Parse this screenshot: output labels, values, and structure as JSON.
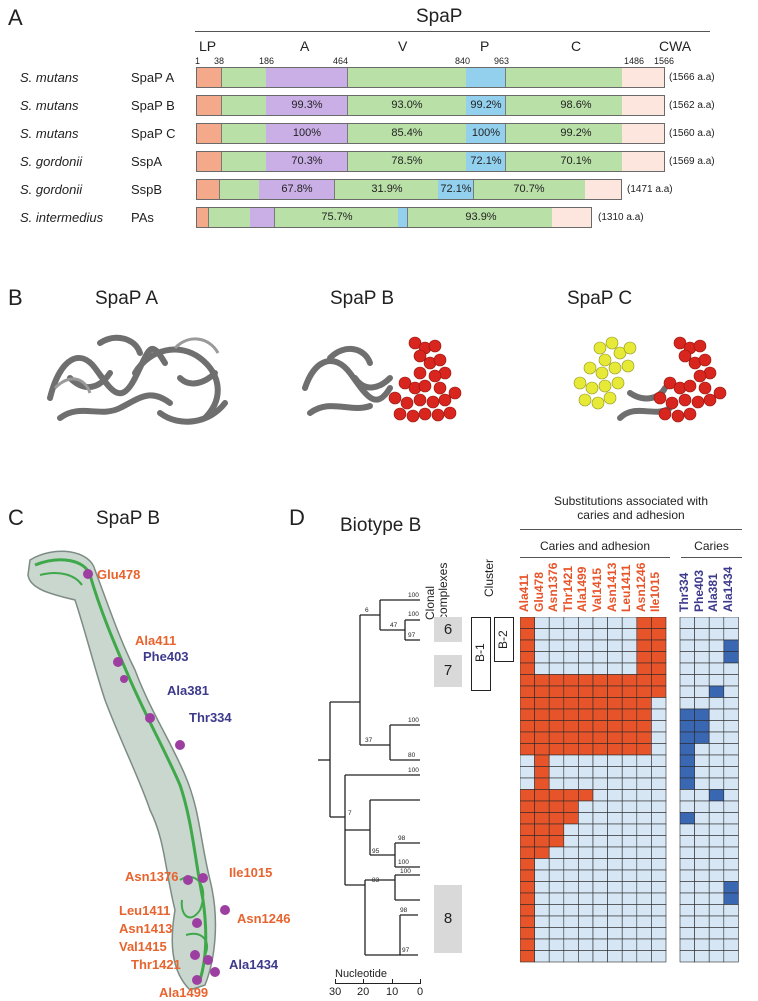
{
  "panels": {
    "a": "A",
    "b": "B",
    "c": "C",
    "d": "D"
  },
  "panel_a": {
    "title": "SpaP",
    "domains": [
      "LP",
      "A",
      "V",
      "P",
      "C",
      "CWA"
    ],
    "positions": [
      "1",
      "38",
      "186",
      "464",
      "840",
      "963",
      "1486",
      "1566"
    ],
    "rows": [
      {
        "species": "S. mutans",
        "protein": "SpaP A",
        "length": "(1566 a.a)",
        "pcts": []
      },
      {
        "species": "S. mutans",
        "protein": "SpaP B",
        "length": "(1562 a.a)",
        "pcts": [
          "99.3%",
          "93.0%",
          "99.2%",
          "98.6%"
        ]
      },
      {
        "species": "S. mutans",
        "protein": "SpaP C",
        "length": "(1560 a.a)",
        "pcts": [
          "100%",
          "85.4%",
          "100%",
          "99.2%"
        ]
      },
      {
        "species": "S. gordonii",
        "protein": "SspA",
        "length": "(1569 a.a)",
        "pcts": [
          "70.3%",
          "78.5%",
          "72.1%",
          "70.1%"
        ]
      },
      {
        "species": "S. gordonii",
        "protein": "SspB",
        "length": "(1471 a.a)",
        "pcts": [
          "67.8%",
          "31.9%",
          "72.1%",
          "70.7%"
        ]
      },
      {
        "species": "S. intermedius",
        "protein": "PAs",
        "length": "(1310 a.a)",
        "pcts": [
          "75.7%",
          "93.9%"
        ]
      }
    ]
  },
  "panel_b": {
    "titles": [
      "SpaP A",
      "SpaP B",
      "SpaP C"
    ]
  },
  "panel_c": {
    "title": "SpaP B",
    "labels": [
      {
        "text": "Glu478",
        "group": "caries_adhesion"
      },
      {
        "text": "Ala411",
        "group": "caries_adhesion"
      },
      {
        "text": "Phe403",
        "group": "caries"
      },
      {
        "text": "Ala381",
        "group": "caries"
      },
      {
        "text": "Thr334",
        "group": "caries"
      },
      {
        "text": "Asn1376",
        "group": "caries_adhesion"
      },
      {
        "text": "Ile1015",
        "group": "caries_adhesion"
      },
      {
        "text": "Leu1411",
        "group": "caries_adhesion"
      },
      {
        "text": "Asn1246",
        "group": "caries_adhesion"
      },
      {
        "text": "Asn1413",
        "group": "caries_adhesion"
      },
      {
        "text": "Val1415",
        "group": "caries_adhesion"
      },
      {
        "text": "Thr1421",
        "group": "caries_adhesion"
      },
      {
        "text": "Ala1434",
        "group": "caries"
      },
      {
        "text": "Ala1499",
        "group": "caries_adhesion"
      }
    ]
  },
  "panel_d": {
    "title": "Biotype B",
    "header": [
      "Substitutions associated with",
      "caries and adhesion"
    ],
    "group1": "Caries and adhesion",
    "group2": "Caries",
    "col_clonal": [
      "Clonal",
      "complexes"
    ],
    "col_cluster": "Cluster",
    "cluster_labels": [
      "B-1",
      "B-2"
    ],
    "clonal_labels": [
      "6",
      "7",
      "8"
    ],
    "cols_ca": [
      "Ala411",
      "Glu478",
      "Asn1376",
      "Thr1421",
      "Ala1499",
      "Val1415",
      "Asn1413",
      "Leu1411",
      "Asn1246",
      "Ile1015"
    ],
    "cols_c": [
      "Thr334",
      "Phe403",
      "Ala381",
      "Ala1434"
    ],
    "bootstrap": [
      "100",
      "100",
      "47",
      "97",
      "6",
      "100",
      "37",
      "80",
      "100",
      "7",
      "95",
      "98",
      "100",
      "83",
      "100",
      "98",
      "97"
    ],
    "scale_label": "Nucleotide",
    "scale_ticks": [
      "30",
      "20",
      "10",
      "0"
    ],
    "colors": {
      "hit_ca": "#e8542a",
      "hit_c": "#3a67b2",
      "empty": "#d6e6f5"
    },
    "matrix_ca": [
      "1000000011",
      "1000000011",
      "1000000011",
      "1000000011",
      "1000000011",
      "1111111111",
      "1111111111",
      "1111111110",
      "1111111110",
      "1111111110",
      "1111111110",
      "1111111110",
      "0100000000",
      "0100000000",
      "0100000000",
      "1111100000",
      "1111000000",
      "1111000000",
      "1110000000",
      "1110000000",
      "1100000000",
      "1000000000",
      "1000000000",
      "1000000000",
      "1000000000",
      "1000000000",
      "1000000000",
      "1000000000",
      "1000000000",
      "1000000000"
    ],
    "matrix_c": [
      "0000",
      "0000",
      "0001",
      "0001",
      "0000",
      "0000",
      "0010",
      "0000",
      "1100",
      "1100",
      "1100",
      "1000",
      "1000",
      "1000",
      "1000",
      "0010",
      "0000",
      "1000",
      "0000",
      "0000",
      "0000",
      "0000",
      "0000",
      "0001",
      "0001",
      "0000",
      "0000",
      "0000",
      "0000",
      "0000"
    ]
  }
}
